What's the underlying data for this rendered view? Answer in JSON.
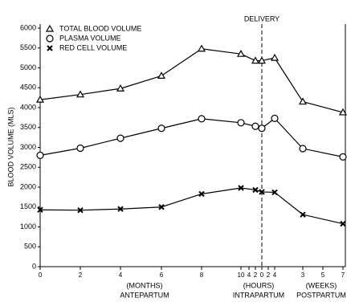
{
  "chart_data": {
    "type": "line",
    "y_label": "BLOOD VOLUME (MLS)",
    "annotation": "DELIVERY",
    "groups": [
      {
        "unit": "(MONTHS)",
        "name": "ANTEPARTUM"
      },
      {
        "unit": "(HOURS)",
        "name": "INTRAPARTUM"
      },
      {
        "unit": "(WEEKS)",
        "name": "POSTPARTUM"
      }
    ],
    "categories": [
      "0",
      "2",
      "4",
      "6",
      "8",
      "10",
      "4",
      "2",
      "0",
      "2",
      "4",
      "3",
      "5",
      "7"
    ],
    "series": [
      {
        "name": "TOTAL BLOOD VOLUME",
        "color": "#000000",
        "marker": "triangle",
        "values": [
          4200,
          4330,
          4480,
          4800,
          5480,
          5350,
          null,
          5180,
          5180,
          null,
          5250,
          4150,
          null,
          3880
        ]
      },
      {
        "name": "PLASMA VOLUME",
        "color": "#000000",
        "marker": "circle",
        "values": [
          2800,
          2980,
          3230,
          3480,
          3720,
          3620,
          null,
          3530,
          3480,
          null,
          3730,
          2970,
          null,
          2760
        ]
      },
      {
        "name": "RED CELL VOLUME",
        "color": "#000000",
        "marker": "cross",
        "values": [
          1430,
          1420,
          1450,
          1500,
          1830,
          1980,
          null,
          1930,
          1880,
          null,
          1870,
          1310,
          null,
          1080
        ]
      }
    ],
    "ylim": [
      0,
      6000
    ],
    "yticks": [
      0,
      500,
      1000,
      1500,
      2000,
      2500,
      3000,
      3500,
      4000,
      4500,
      5000,
      5500,
      6000
    ]
  }
}
